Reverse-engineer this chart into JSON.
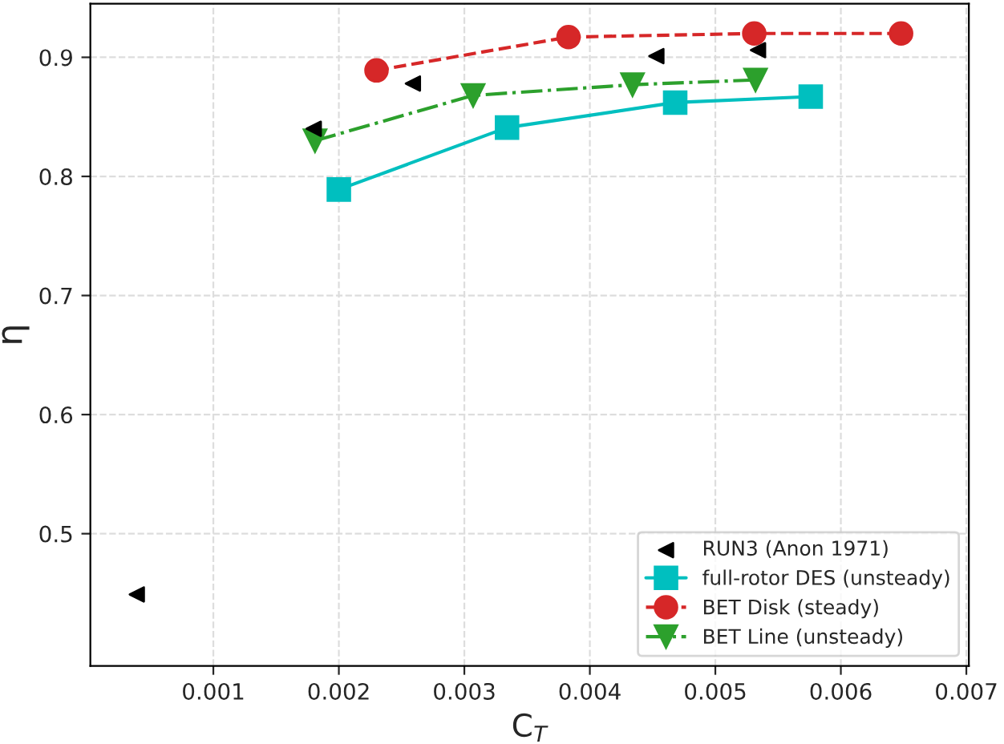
{
  "chart_data": {
    "type": "line",
    "xlabel": "C$_{T}$",
    "ylabel": "η",
    "xlim": [
      2e-05,
      0.00702
    ],
    "xticks": [
      0.001,
      0.002,
      0.003,
      0.004,
      0.005,
      0.006,
      0.007
    ],
    "ylim": [
      0.389,
      0.945
    ],
    "yticks": [
      0.5,
      0.6,
      0.7,
      0.8,
      0.9
    ],
    "grid": true,
    "legend": "bottom right",
    "series": [
      {
        "name": "RUN3 (Anon 1971)",
        "type": "scatter",
        "marker": "triangle",
        "color": "#000000",
        "x": [
          0.00039,
          0.0018,
          0.00259,
          0.00453,
          0.00534
        ],
        "values": [
          0.449,
          0.84,
          0.878,
          0.901,
          0.906
        ]
      },
      {
        "name": "full-rotor DES (unsteady)",
        "marker": "square",
        "line_style": "solid",
        "color": "#00bfbf",
        "x": [
          0.002,
          0.00334,
          0.00468,
          0.00576
        ],
        "values": [
          0.789,
          0.841,
          0.862,
          0.867
        ]
      },
      {
        "name": "BET Disk (steady)",
        "marker": "circle",
        "line_style": "dashed",
        "color": "#d62728",
        "x": [
          0.0023,
          0.00383,
          0.00531,
          0.00648
        ],
        "values": [
          0.889,
          0.917,
          0.92,
          0.92
        ]
      },
      {
        "name": "BET Line (unsteady)",
        "marker": "triangle",
        "line_style": "dashdot",
        "color": "#2ca02c",
        "x": [
          0.00181,
          0.00307,
          0.00434,
          0.00532
        ],
        "values": [
          0.83,
          0.868,
          0.877,
          0.881
        ]
      }
    ]
  }
}
